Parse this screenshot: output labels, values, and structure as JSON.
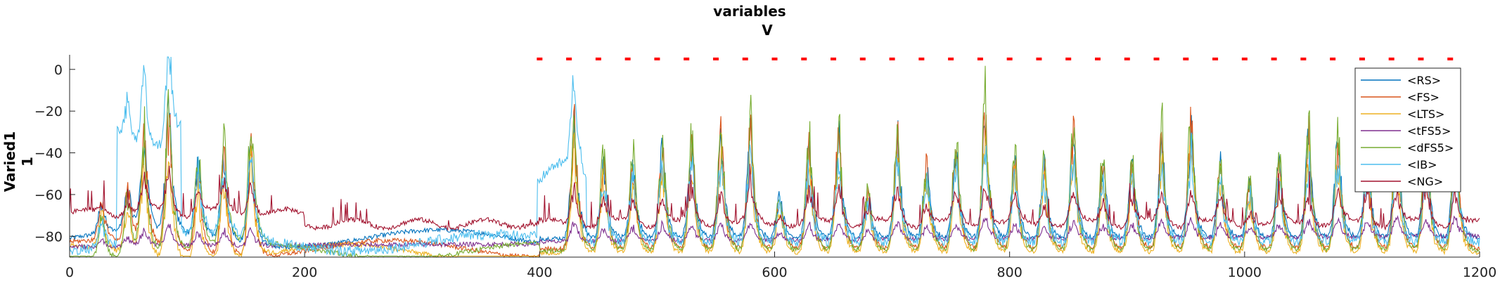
{
  "chart_data": {
    "type": "line",
    "title": "variables",
    "subtitle": "V",
    "ylabel_line1": "Varied1",
    "ylabel_line2": "1",
    "xlim": [
      0,
      1200
    ],
    "ylim": [
      -90,
      7
    ],
    "xticks": [
      0,
      200,
      400,
      600,
      800,
      1000,
      1200
    ],
    "yticks": [
      0,
      -20,
      -40,
      -60,
      -80
    ],
    "grid": false,
    "legend_position": "top-right",
    "series": [
      {
        "name": "<RS>",
        "color": "#0072BD"
      },
      {
        "name": "<FS>",
        "color": "#D95319"
      },
      {
        "name": "<LTS>",
        "color": "#EDB120"
      },
      {
        "name": "<tFS5>",
        "color": "#7E2F8E"
      },
      {
        "name": "<dFS5>",
        "color": "#77AC30"
      },
      {
        "name": "<IB>",
        "color": "#4DBEEE"
      },
      {
        "name": "<NG>",
        "color": "#A2142F"
      }
    ],
    "stimulus_markers": {
      "color": "#FF0000",
      "y": 5,
      "x": [
        400,
        425,
        450,
        475,
        500,
        525,
        550,
        575,
        600,
        625,
        650,
        675,
        700,
        725,
        750,
        775,
        800,
        825,
        850,
        875,
        900,
        925,
        950,
        975,
        1000,
        1025,
        1050,
        1075,
        1100,
        1125,
        1150,
        1175
      ]
    },
    "burst_peaks_x": [
      28,
      50,
      64,
      85,
      110,
      132,
      155,
      430,
      455,
      480,
      505,
      530,
      555,
      580,
      605,
      630,
      655,
      680,
      705,
      730,
      755,
      780,
      805,
      830,
      855,
      880,
      905,
      930,
      955,
      980,
      1005,
      1030,
      1055,
      1080,
      1105,
      1130,
      1155,
      1180
    ],
    "burst_peaks_y": [
      -60,
      -48,
      -15,
      0,
      -30,
      -24,
      -16,
      -5,
      -30,
      -30,
      -18,
      -20,
      -12,
      -8,
      -52,
      -22,
      -10,
      -48,
      -12,
      -30,
      -18,
      5,
      -28,
      -32,
      -12,
      -30,
      -30,
      -15,
      -5,
      -30,
      -45,
      -30,
      -12,
      -15,
      -18,
      -5,
      -15,
      -10
    ]
  }
}
